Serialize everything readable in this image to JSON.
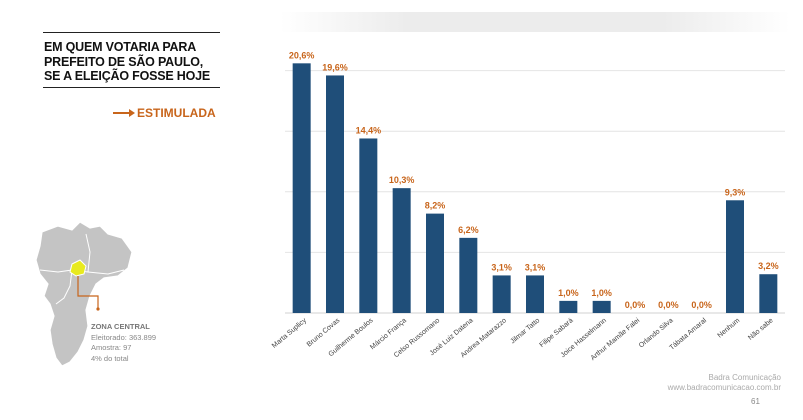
{
  "title_lines": [
    "EM QUEM VOTARIA PARA",
    "PREFEITO DE SÃO PAULO,",
    "SE A ELEIÇÃO FOSSE HOJE"
  ],
  "subtitle": "ESTIMULADA",
  "zone": {
    "name": "ZONA CENTRAL",
    "electorate": "Eleitorado: 363.899",
    "sample": "Amostra: 97",
    "share": "4% do total"
  },
  "footer": {
    "company": "Badra Comunicação",
    "website": "www.badracomunicacao.com.br",
    "page": "61"
  },
  "colors": {
    "bar": "#1f4e79",
    "label": "#c8651b",
    "title": "#111111",
    "map": "#c4c4c4",
    "map_highlight": "#e8ea1f"
  },
  "chart_data": {
    "type": "bar",
    "categories": [
      "Marta Suplicy",
      "Bruno Covas",
      "Guilherme Boulos",
      "Márcio França",
      "Celso Russomano",
      "José Luiz Datena",
      "Andrea Matarazzo",
      "Jilmar Tatto",
      "Filipe Sabará",
      "Joice Hasselmann",
      "Arthur Mamãe Falei",
      "Orlando Silva",
      "Tábata Amaral",
      "Nenhum",
      "Não sabe"
    ],
    "values": [
      20.6,
      19.6,
      14.4,
      10.3,
      8.2,
      6.2,
      3.1,
      3.1,
      1.0,
      1.0,
      0.0,
      0.0,
      0.0,
      9.3,
      3.2
    ],
    "labels": [
      "20,6%",
      "19,6%",
      "14,4%",
      "10,3%",
      "8,2%",
      "6,2%",
      "3,1%",
      "3,1%",
      "1,0%",
      "1,0%",
      "0,0%",
      "0,0%",
      "0,0%",
      "9,3%",
      "3,2%"
    ],
    "ylim": [
      0,
      25
    ],
    "grid": true,
    "legend": "none"
  }
}
